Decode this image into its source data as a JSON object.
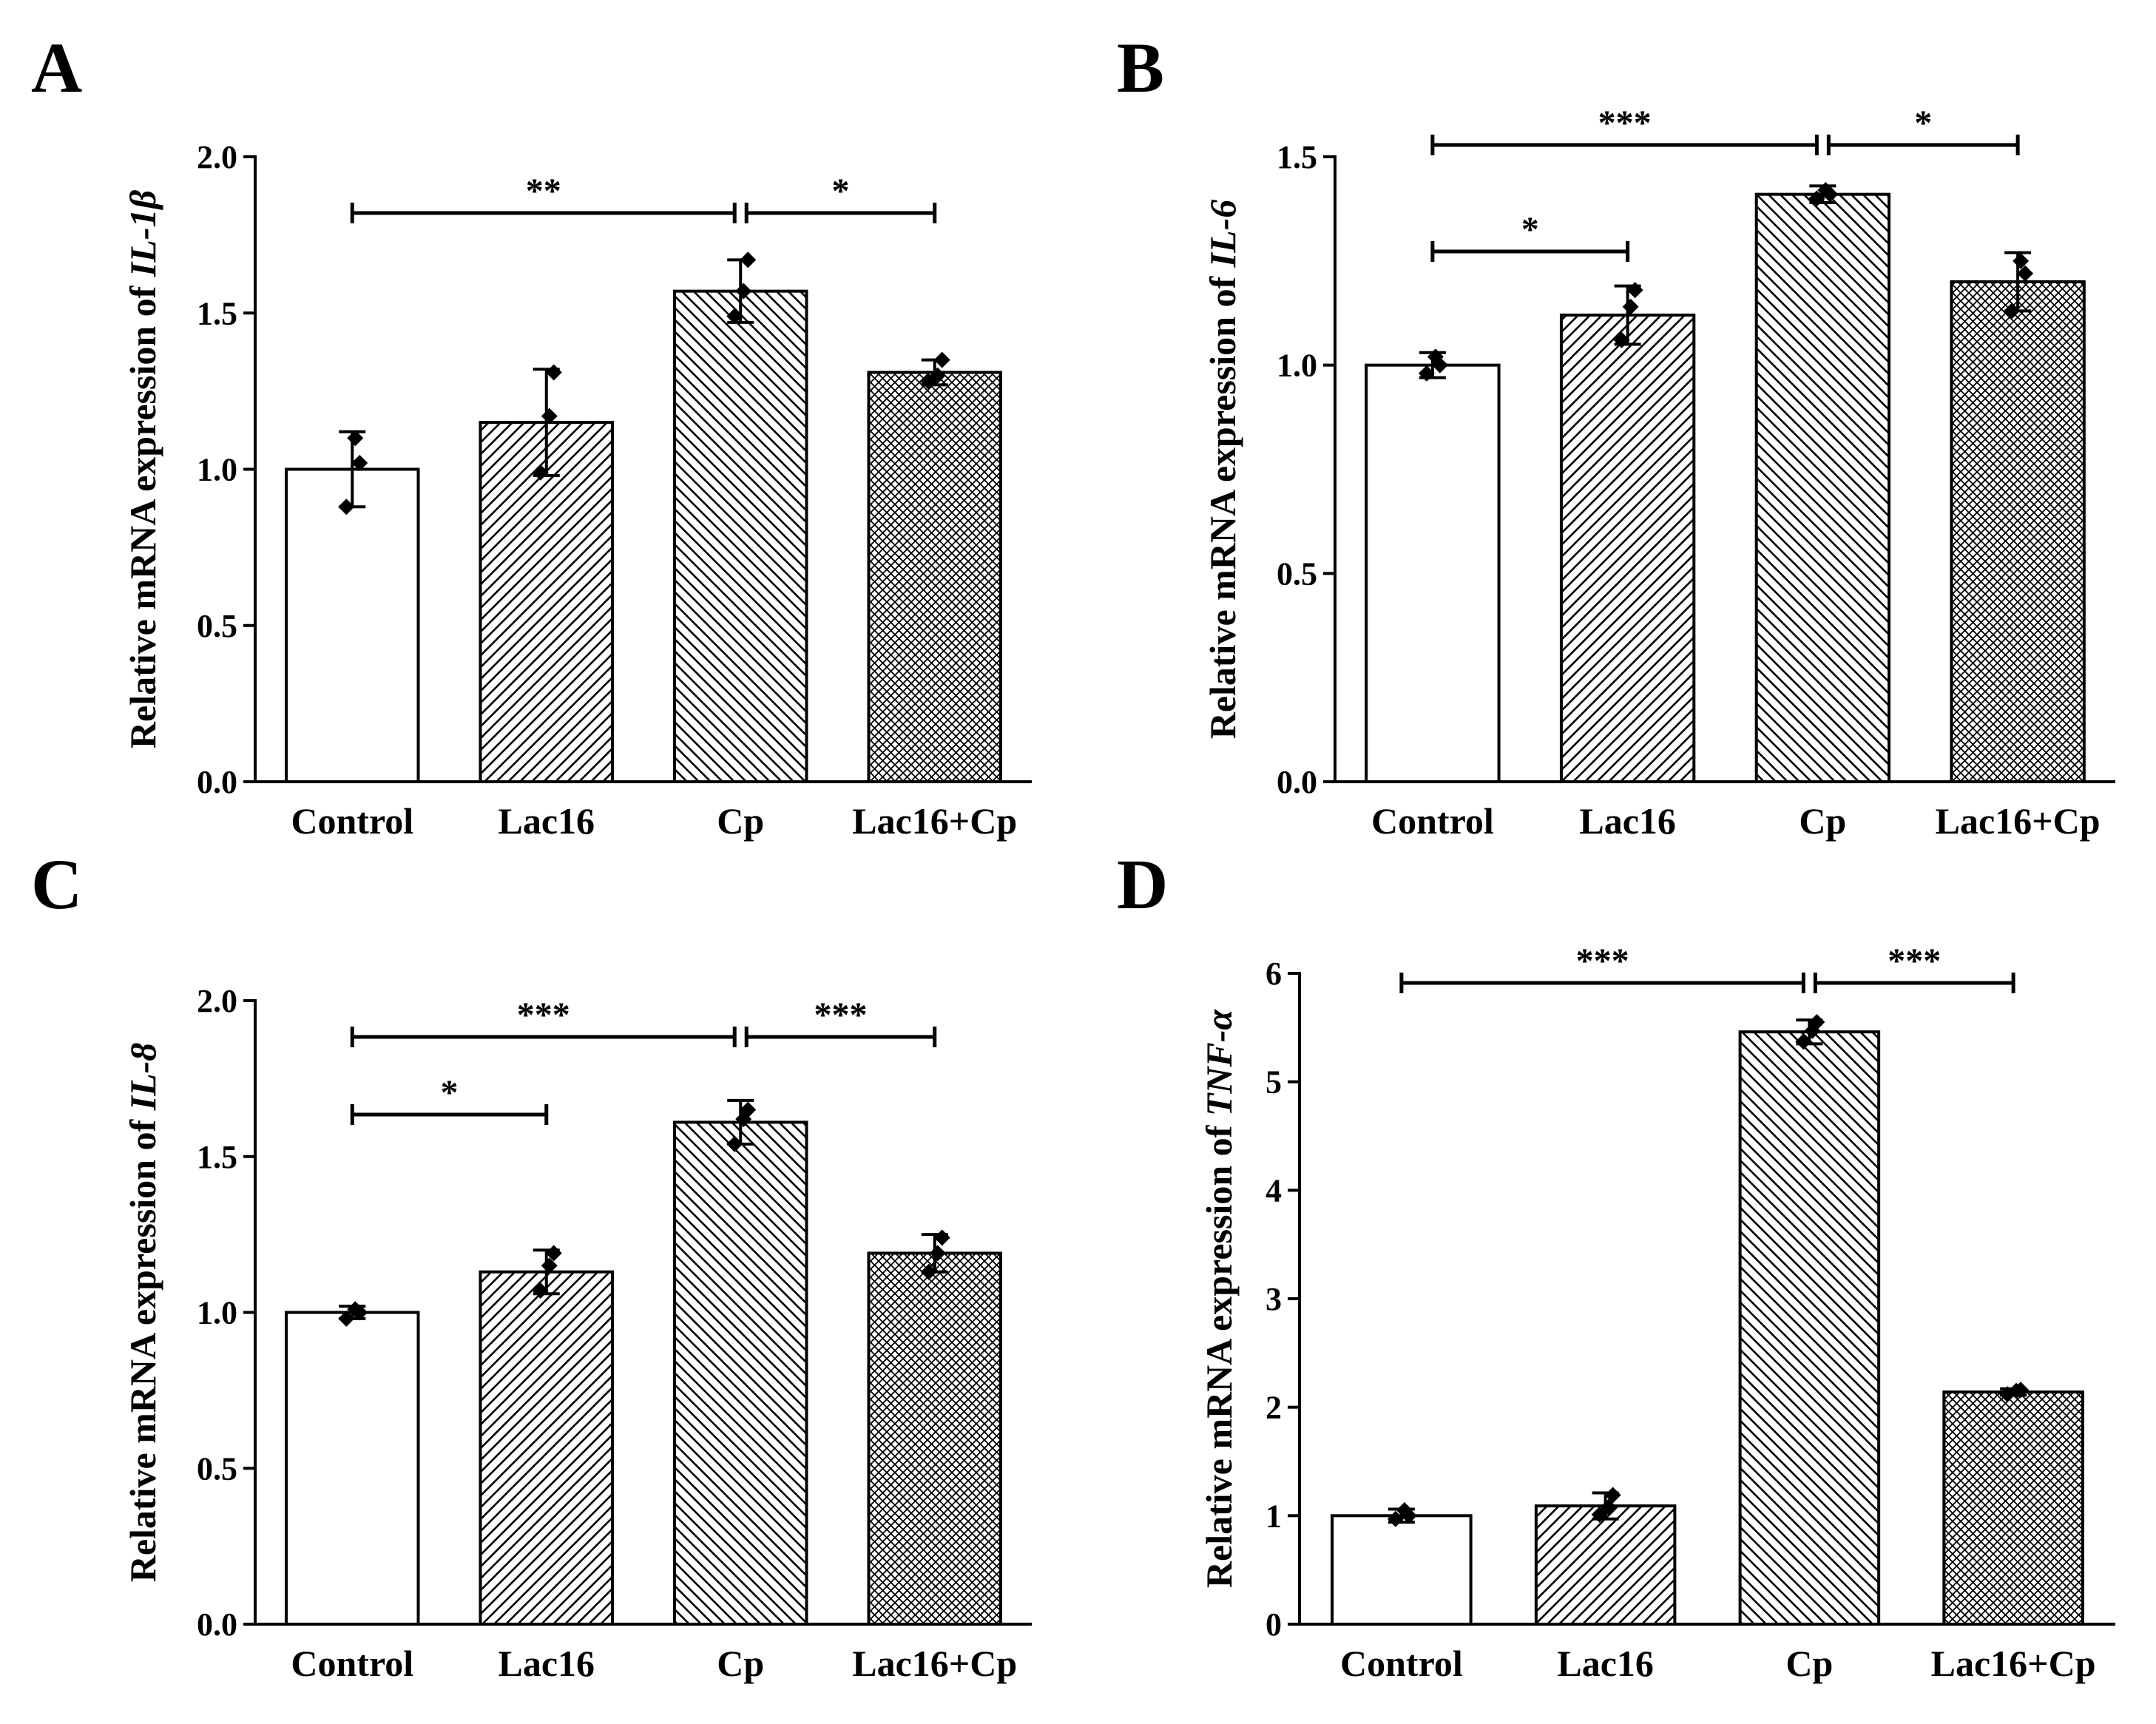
{
  "chart_data": [
    {
      "panel": "A",
      "type": "bar",
      "title": "",
      "ylabel_prefix": "Relative mRNA expression of ",
      "ylabel_gene": "IL-1β",
      "xlabel": "",
      "categories": [
        "Control",
        "Lac16",
        "Cp",
        "Lac16+Cp"
      ],
      "values": [
        1.0,
        1.15,
        1.57,
        1.31
      ],
      "errors": [
        0.12,
        0.17,
        0.1,
        0.04
      ],
      "points": [
        [
          0.88,
          1.1,
          1.02
        ],
        [
          0.99,
          1.17,
          1.31
        ],
        [
          1.49,
          1.57,
          1.67
        ],
        [
          1.28,
          1.3,
          1.35
        ]
      ],
      "patterns": [
        "none",
        "hatch-right",
        "hatch-left",
        "crosshatch"
      ],
      "ylim": [
        0,
        2.0
      ],
      "yticks": [
        "0.0",
        "0.5",
        "1.0",
        "1.5",
        "2.0"
      ],
      "significance": [
        {
          "from": 0,
          "to": 2,
          "label": "**",
          "level": 1
        },
        {
          "from": 2,
          "to": 3,
          "label": "*",
          "level": 1
        }
      ]
    },
    {
      "panel": "B",
      "type": "bar",
      "title": "",
      "ylabel_prefix": "Relative mRNA expression of ",
      "ylabel_gene": "IL-6",
      "xlabel": "",
      "categories": [
        "Control",
        "Lac16",
        "Cp",
        "Lac16+Cp"
      ],
      "values": [
        1.0,
        1.12,
        1.41,
        1.2
      ],
      "errors": [
        0.03,
        0.07,
        0.02,
        0.07
      ],
      "points": [
        [
          0.98,
          1.02,
          1.0
        ],
        [
          1.06,
          1.14,
          1.18
        ],
        [
          1.4,
          1.42,
          1.41
        ],
        [
          1.13,
          1.25,
          1.22
        ]
      ],
      "patterns": [
        "none",
        "hatch-right",
        "hatch-left",
        "crosshatch"
      ],
      "ylim": [
        0,
        1.5
      ],
      "yticks": [
        "0.0",
        "0.5",
        "1.0",
        "1.5"
      ],
      "significance": [
        {
          "from": 0,
          "to": 1,
          "label": "*",
          "level": 1
        },
        {
          "from": 0,
          "to": 2,
          "label": "***",
          "level": 2
        },
        {
          "from": 2,
          "to": 3,
          "label": "*",
          "level": 2
        }
      ]
    },
    {
      "panel": "C",
      "type": "bar",
      "title": "",
      "ylabel_prefix": "Relative mRNA expression of ",
      "ylabel_gene": "IL-8",
      "xlabel": "",
      "categories": [
        "Control",
        "Lac16",
        "Cp",
        "Lac16+Cp"
      ],
      "values": [
        1.0,
        1.13,
        1.61,
        1.19
      ],
      "errors": [
        0.02,
        0.07,
        0.07,
        0.06
      ],
      "points": [
        [
          0.98,
          1.01,
          1.0
        ],
        [
          1.07,
          1.15,
          1.19
        ],
        [
          1.54,
          1.62,
          1.65
        ],
        [
          1.13,
          1.19,
          1.24
        ]
      ],
      "patterns": [
        "none",
        "hatch-right",
        "hatch-left",
        "crosshatch"
      ],
      "ylim": [
        0,
        2.0
      ],
      "yticks": [
        "0.0",
        "0.5",
        "1.0",
        "1.5",
        "2.0"
      ],
      "significance": [
        {
          "from": 0,
          "to": 1,
          "label": "*",
          "level": 1
        },
        {
          "from": 0,
          "to": 2,
          "label": "***",
          "level": 2
        },
        {
          "from": 2,
          "to": 3,
          "label": "***",
          "level": 2
        }
      ]
    },
    {
      "panel": "D",
      "type": "bar",
      "title": "",
      "ylabel_prefix": "Relative mRNA expression of ",
      "ylabel_gene": "TNF-α",
      "xlabel": "",
      "categories": [
        "Control",
        "Lac16",
        "Cp",
        "Lac16+Cp"
      ],
      "values": [
        1.0,
        1.09,
        5.46,
        2.14
      ],
      "errors": [
        0.06,
        0.12,
        0.11,
        0.03
      ],
      "points": [
        [
          0.97,
          1.05,
          1.0
        ],
        [
          1.01,
          1.08,
          1.19
        ],
        [
          5.37,
          5.47,
          5.55
        ],
        [
          2.12,
          2.15,
          2.16
        ]
      ],
      "patterns": [
        "none",
        "hatch-right",
        "hatch-left",
        "crosshatch"
      ],
      "ylim": [
        0,
        6
      ],
      "yticks": [
        "0",
        "1",
        "2",
        "3",
        "4",
        "5",
        "6"
      ],
      "significance": [
        {
          "from": 0,
          "to": 2,
          "label": "***",
          "level": 1
        },
        {
          "from": 2,
          "to": 3,
          "label": "***",
          "level": 1
        }
      ]
    }
  ]
}
